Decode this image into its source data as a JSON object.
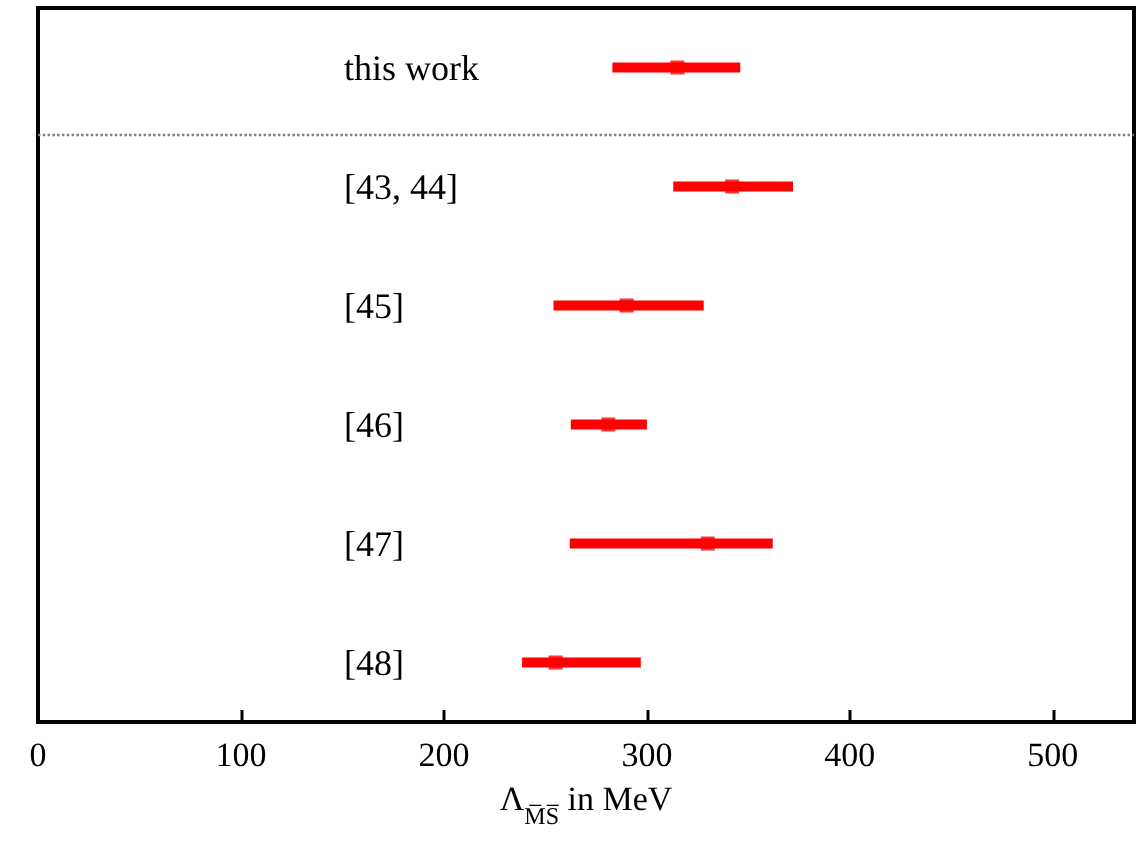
{
  "chart_data": {
    "type": "scatter",
    "orientation": "horizontal",
    "xlabel": "Λ$_{M̅S̅}$ in MeV",
    "categories": [
      "this work",
      "[43, 44]",
      "[45]",
      "[46]",
      "[47]",
      "[48]"
    ],
    "series": [
      {
        "color": "#ff0000",
        "values": [
          315,
          342,
          290,
          281,
          330,
          255
        ],
        "errors": [
          [
            283,
            346
          ],
          [
            313,
            372
          ],
          [
            254,
            328
          ],
          [
            262.5,
            300
          ],
          [
            262,
            362
          ],
          [
            238.5,
            297
          ]
        ]
      }
    ],
    "xlim": [
      0,
      540
    ],
    "xticks": [
      0,
      100,
      200,
      300,
      400,
      500
    ],
    "marker": "square",
    "grid": false
  }
}
